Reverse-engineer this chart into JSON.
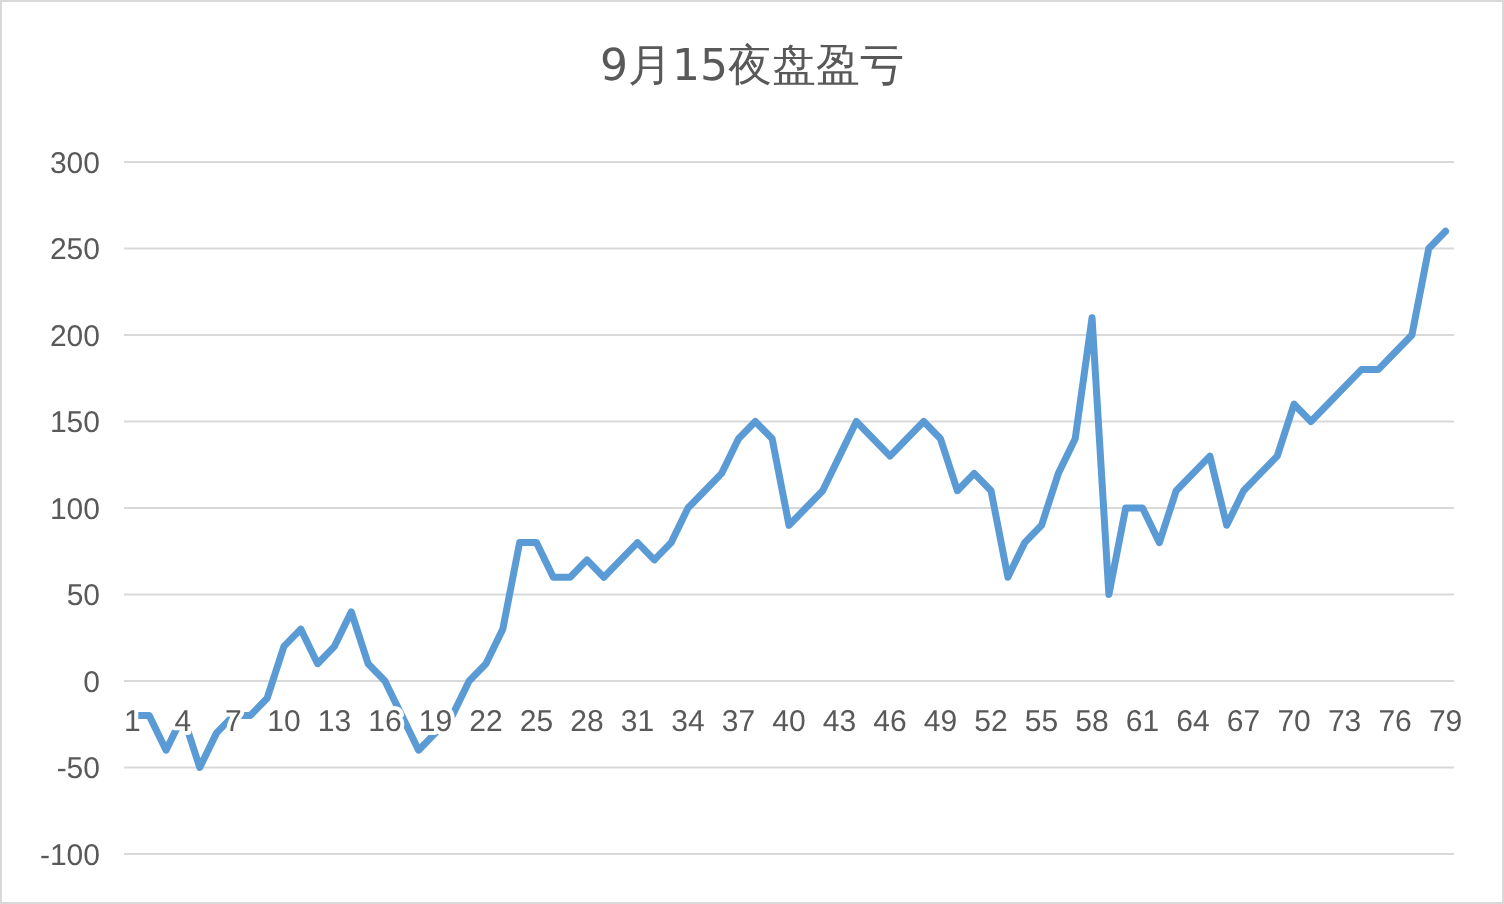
{
  "chart_data": {
    "type": "line",
    "title": "9月15夜盘盈亏",
    "categories": [
      "1",
      null,
      null,
      "4",
      null,
      null,
      "7",
      null,
      null,
      "10",
      null,
      null,
      "13",
      null,
      null,
      "16",
      null,
      null,
      "19",
      null,
      null,
      "22",
      null,
      null,
      "25",
      null,
      null,
      "28",
      null,
      null,
      "31",
      null,
      null,
      "34",
      null,
      null,
      "37",
      null,
      null,
      "40",
      null,
      null,
      "43",
      null,
      null,
      "46",
      null,
      null,
      "49",
      null,
      null,
      "52",
      null,
      null,
      "55",
      null,
      null,
      "58",
      null,
      null,
      "61",
      null,
      null,
      "64",
      null,
      null,
      "67",
      null,
      null,
      "70",
      null,
      null,
      "73",
      null,
      null,
      "76",
      null,
      null,
      "79"
    ],
    "series": [
      {
        "color": "#5b9bd5",
        "values": [
          -20,
          -20,
          -40,
          -20,
          -50,
          -30,
          -20,
          -20,
          -10,
          20,
          30,
          10,
          20,
          40,
          10,
          0,
          -20,
          -40,
          -30,
          -20,
          0,
          10,
          30,
          80,
          80,
          60,
          60,
          70,
          60,
          70,
          80,
          70,
          80,
          100,
          110,
          120,
          140,
          150,
          140,
          90,
          100,
          110,
          130,
          150,
          140,
          130,
          140,
          150,
          140,
          110,
          120,
          110,
          60,
          80,
          90,
          120,
          140,
          210,
          50,
          100,
          100,
          80,
          110,
          120,
          130,
          90,
          110,
          120,
          130,
          160,
          150,
          160,
          170,
          180,
          180,
          190,
          200,
          250,
          260
        ]
      }
    ],
    "ylim": [
      -100,
      300
    ],
    "yticks": [
      -100,
      -50,
      0,
      50,
      100,
      150,
      200,
      250,
      300
    ],
    "grid": "y",
    "marker": "none",
    "line_style": "solid"
  }
}
